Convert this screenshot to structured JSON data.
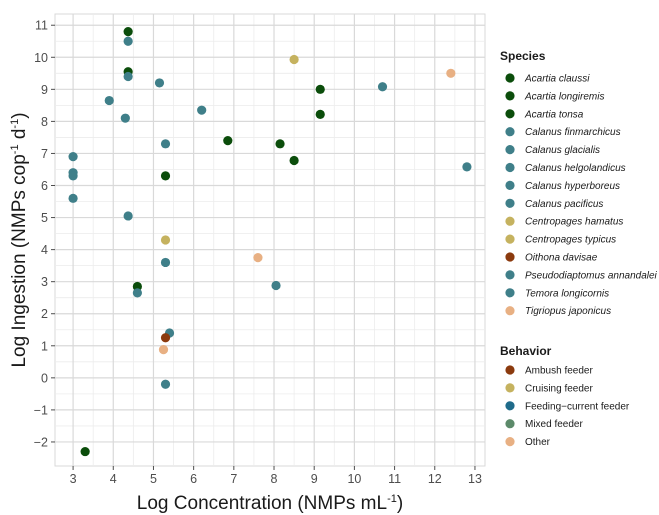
{
  "chart_data": {
    "type": "scatter",
    "xlabel": "Log Concentration (NMPs mL",
    "xlabel_sup": "-1",
    "xlabel_tail": ")",
    "ylabel": "Log Ingestion (NMPs cop",
    "ylabel_sup1": "-1",
    "ylabel_mid": " d",
    "ylabel_sup2": "-1",
    "ylabel_tail": ")",
    "xlim": [
      2.55,
      13.25
    ],
    "ylim": [
      -2.75,
      11.35
    ],
    "x_ticks": [
      3,
      4,
      5,
      6,
      7,
      8,
      9,
      10,
      11,
      12,
      13
    ],
    "y_ticks": [
      -2,
      -1,
      0,
      1,
      2,
      3,
      4,
      5,
      6,
      7,
      8,
      9,
      10,
      11
    ],
    "grid": true,
    "legend_placement": "right",
    "legend_species_title": "Species",
    "species": [
      {
        "name": "Acartia claussi",
        "color": "#0b4d0b"
      },
      {
        "name": "Acartia longiremis",
        "color": "#0b4d0b"
      },
      {
        "name": "Acartia tonsa",
        "color": "#0b4d0b"
      },
      {
        "name": "Calanus finmarchicus",
        "color": "#3f7f89"
      },
      {
        "name": "Calanus glacialis",
        "color": "#3f7f89"
      },
      {
        "name": "Calanus helgolandicus",
        "color": "#3f7f89"
      },
      {
        "name": "Calanus hyperboreus",
        "color": "#3f7f89"
      },
      {
        "name": "Calanus pacificus",
        "color": "#3f7f89"
      },
      {
        "name": "Centropages hamatus",
        "color": "#c5b25f"
      },
      {
        "name": "Centropages typicus",
        "color": "#c5b25f"
      },
      {
        "name": "Oithona davisae",
        "color": "#8b3a0e"
      },
      {
        "name": "Pseudodiaptomus annandalei",
        "color": "#3f7f89"
      },
      {
        "name": "Temora longicornis",
        "color": "#3f7f89"
      },
      {
        "name": "Tigriopus japonicus",
        "color": "#e8b083"
      }
    ],
    "legend_behavior_title": "Behavior",
    "behaviors": [
      {
        "name": "Ambush feeder",
        "color": "#8b3a0e"
      },
      {
        "name": "Cruising feeder",
        "color": "#c5b25f"
      },
      {
        "name": "Feeding−current feeder",
        "color": "#1f6b8a"
      },
      {
        "name": "Mixed feeder",
        "color": "#5c8a6a"
      },
      {
        "name": "Other",
        "color": "#e8b083"
      }
    ],
    "points": [
      {
        "x": 3.0,
        "y": 6.9,
        "color": "#3f7f89"
      },
      {
        "x": 3.0,
        "y": 6.4,
        "color": "#3f7f89"
      },
      {
        "x": 3.0,
        "y": 6.3,
        "color": "#3f7f89"
      },
      {
        "x": 3.0,
        "y": 5.6,
        "color": "#3f7f89"
      },
      {
        "x": 3.3,
        "y": -2.3,
        "color": "#0b4d0b"
      },
      {
        "x": 3.9,
        "y": 8.65,
        "color": "#3f7f89"
      },
      {
        "x": 4.3,
        "y": 8.1,
        "color": "#3f7f89"
      },
      {
        "x": 4.37,
        "y": 10.8,
        "color": "#0b4d0b"
      },
      {
        "x": 4.37,
        "y": 10.5,
        "color": "#3f7f89"
      },
      {
        "x": 4.37,
        "y": 9.55,
        "color": "#0b4d0b"
      },
      {
        "x": 4.37,
        "y": 9.4,
        "color": "#3f7f89"
      },
      {
        "x": 4.37,
        "y": 5.05,
        "color": "#3f7f89"
      },
      {
        "x": 4.6,
        "y": 2.85,
        "color": "#0b4d0b"
      },
      {
        "x": 4.6,
        "y": 2.65,
        "color": "#3f7f89"
      },
      {
        "x": 5.15,
        "y": 9.2,
        "color": "#3f7f89"
      },
      {
        "x": 5.3,
        "y": 7.3,
        "color": "#3f7f89"
      },
      {
        "x": 5.3,
        "y": 6.3,
        "color": "#0b4d0b"
      },
      {
        "x": 5.3,
        "y": 4.3,
        "color": "#c5b25f"
      },
      {
        "x": 5.3,
        "y": 3.6,
        "color": "#3f7f89"
      },
      {
        "x": 5.4,
        "y": 1.4,
        "color": "#3f7f89"
      },
      {
        "x": 5.3,
        "y": 1.25,
        "color": "#8b3a0e"
      },
      {
        "x": 5.25,
        "y": 0.88,
        "color": "#e8b083"
      },
      {
        "x": 5.3,
        "y": -0.2,
        "color": "#3f7f89"
      },
      {
        "x": 6.2,
        "y": 8.35,
        "color": "#3f7f89"
      },
      {
        "x": 6.85,
        "y": 7.4,
        "color": "#0b4d0b"
      },
      {
        "x": 7.6,
        "y": 3.75,
        "color": "#e8b083"
      },
      {
        "x": 8.05,
        "y": 2.88,
        "color": "#3f7f89"
      },
      {
        "x": 8.15,
        "y": 7.3,
        "color": "#0b4d0b"
      },
      {
        "x": 8.5,
        "y": 9.93,
        "color": "#c5b25f"
      },
      {
        "x": 8.5,
        "y": 6.78,
        "color": "#0b4d0b"
      },
      {
        "x": 9.15,
        "y": 9.0,
        "color": "#0b4d0b"
      },
      {
        "x": 9.15,
        "y": 8.22,
        "color": "#0b4d0b"
      },
      {
        "x": 10.7,
        "y": 9.08,
        "color": "#3f7f89"
      },
      {
        "x": 12.4,
        "y": 9.5,
        "color": "#e8b083"
      },
      {
        "x": 12.8,
        "y": 6.58,
        "color": "#3f7f89"
      }
    ]
  }
}
